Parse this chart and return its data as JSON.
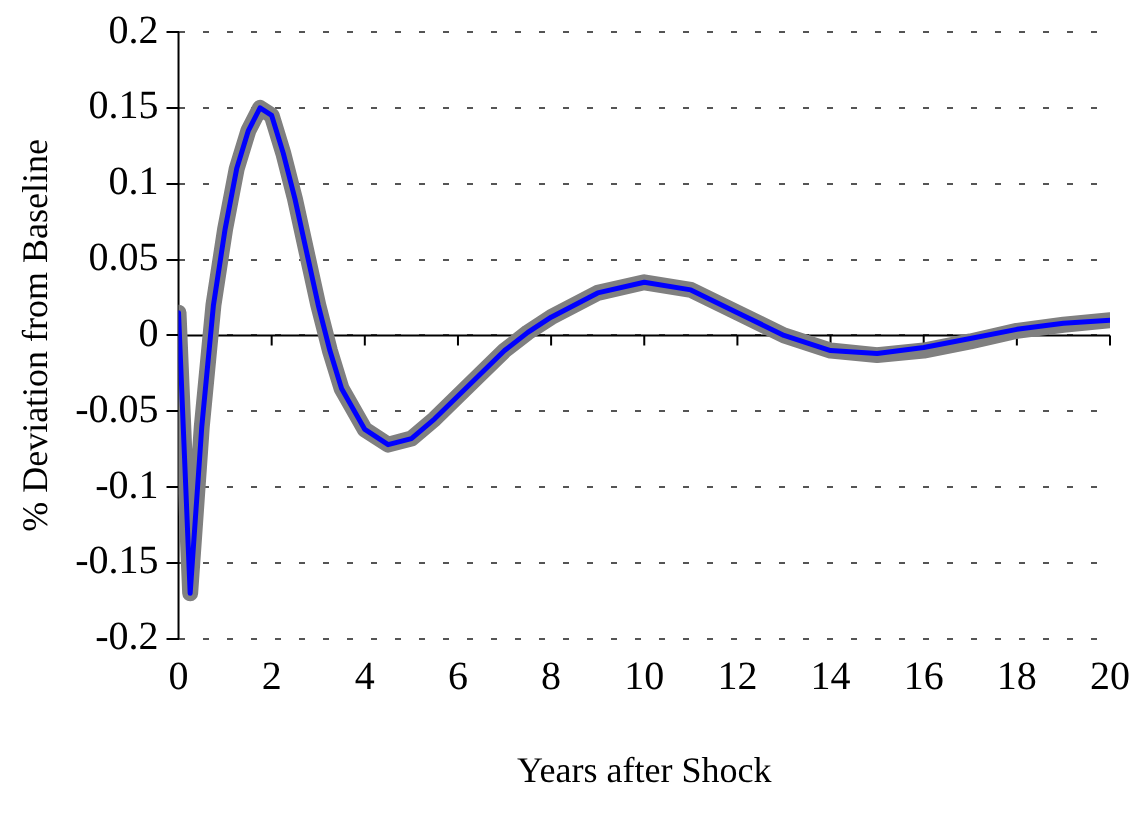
{
  "chart_data": {
    "type": "line",
    "xlabel": "Years after Shock",
    "ylabel": "% Deviation from Baseline",
    "xlim": [
      0,
      20
    ],
    "xticks": [
      0,
      2,
      4,
      6,
      8,
      10,
      12,
      14,
      16,
      18,
      20
    ],
    "ylim": [
      -0.2,
      0.2
    ],
    "yticks": [
      -0.2,
      -0.15,
      -0.1,
      -0.05,
      0,
      0.05,
      0.1,
      0.15,
      0.2
    ],
    "grid": "y",
    "legend": false,
    "marker": "none",
    "line_style": "solid",
    "series": [
      {
        "color": "#808080",
        "x": [
          0,
          0.25,
          0.5,
          0.75,
          1,
          1.25,
          1.5,
          1.75,
          2,
          2.25,
          2.5,
          2.75,
          3,
          3.25,
          3.5,
          4,
          4.5,
          5,
          5.5,
          6,
          6.5,
          7,
          7.5,
          8,
          9,
          10,
          11,
          12,
          13,
          14,
          15,
          16,
          17,
          18,
          19,
          20
        ],
        "values": [
          0.015,
          -0.17,
          -0.06,
          0.02,
          0.07,
          0.11,
          0.135,
          0.15,
          0.145,
          0.12,
          0.09,
          0.055,
          0.02,
          -0.01,
          -0.035,
          -0.062,
          -0.072,
          -0.068,
          -0.055,
          -0.04,
          -0.025,
          -0.01,
          0.002,
          0.012,
          0.028,
          0.035,
          0.03,
          0.015,
          0,
          -0.01,
          -0.013,
          -0.01,
          -0.004,
          0.003,
          0.007,
          0.01
        ]
      },
      {
        "color": "#0000ff",
        "x": [
          0,
          0.25,
          0.5,
          0.75,
          1,
          1.25,
          1.5,
          1.75,
          2,
          2.25,
          2.5,
          2.75,
          3,
          3.25,
          3.5,
          4,
          4.5,
          5,
          5.5,
          6,
          6.5,
          7,
          7.5,
          8,
          9,
          10,
          11,
          12,
          13,
          14,
          15,
          16,
          17,
          18,
          19,
          20
        ],
        "values": [
          0.015,
          -0.17,
          -0.06,
          0.02,
          0.07,
          0.11,
          0.135,
          0.15,
          0.145,
          0.12,
          0.09,
          0.055,
          0.02,
          -0.01,
          -0.035,
          -0.062,
          -0.072,
          -0.068,
          -0.055,
          -0.04,
          -0.025,
          -0.01,
          0.002,
          0.012,
          0.028,
          0.035,
          0.03,
          0.015,
          0,
          -0.01,
          -0.012,
          -0.008,
          -0.002,
          0.004,
          0.008,
          0.01
        ]
      }
    ]
  }
}
